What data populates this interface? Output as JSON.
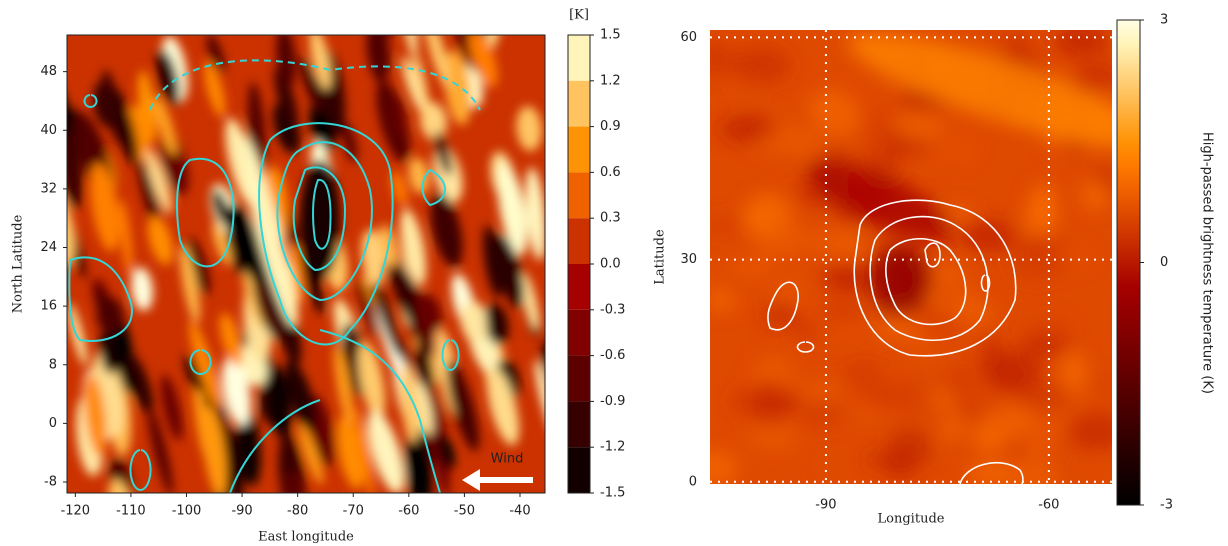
{
  "chart_data": [
    {
      "type": "heatmap",
      "xlabel": "East longitude",
      "ylabel": "North Latitude",
      "xlim": [
        -121.5,
        -35.5
      ],
      "ylim": [
        -9.5,
        53
      ],
      "xticks": [
        -120,
        -110,
        -100,
        -90,
        -80,
        -70,
        -60,
        -50,
        -40
      ],
      "yticks": [
        -8,
        0,
        8,
        16,
        24,
        32,
        40,
        48
      ],
      "grid": false,
      "contour_color": "#33d6d6",
      "annotation": "Wind",
      "colorbar": {
        "label": "[K]",
        "lim": [
          -1.5,
          1.5
        ],
        "style": "discrete",
        "ticks": [
          1.5,
          1.2,
          0.9,
          0.6,
          0.3,
          {
            "value": 0,
            "label": "0.0"
          },
          -0.3,
          -0.6,
          -0.9,
          -1.2,
          -1.5
        ]
      }
    },
    {
      "type": "heatmap",
      "xlabel": "Longitude",
      "ylabel": "Latitude",
      "xlim": [
        -105.6,
        -51.5
      ],
      "ylim": [
        -0.3,
        61
      ],
      "xticks": [
        -90,
        -60
      ],
      "yticks": [
        0,
        30,
        60
      ],
      "grid": true,
      "contour_color": "#ffffff",
      "colorbar": {
        "label": "High-passed brightness temperature (K)",
        "lim": [
          -3,
          3
        ],
        "style": "continuous",
        "ticks": [
          3,
          0,
          -3
        ]
      }
    }
  ]
}
